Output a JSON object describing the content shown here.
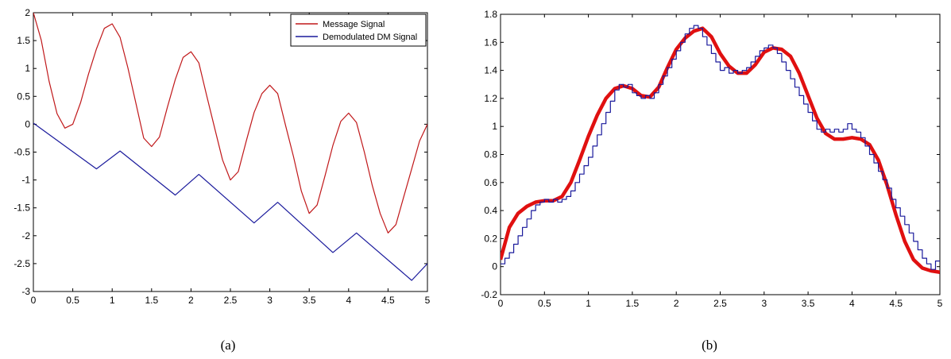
{
  "chart_data": [
    {
      "type": "line",
      "caption": "(a)",
      "xlim": [
        0,
        5
      ],
      "ylim": [
        -3,
        2
      ],
      "xticks": [
        0,
        0.5,
        1,
        1.5,
        2,
        2.5,
        3,
        3.5,
        4,
        4.5,
        5
      ],
      "xtick_labels": [
        "0",
        "0.5",
        "1",
        "1.5",
        "2",
        "2.5",
        "3",
        "3.5",
        "4",
        "4.5",
        "5"
      ],
      "yticks": [
        -3,
        -2.5,
        -2,
        -1.5,
        -1,
        -0.5,
        0,
        0.5,
        1,
        1.5,
        2
      ],
      "ytick_labels": [
        "-3",
        "-2.5",
        "-2",
        "-1.5",
        "-1",
        "-0.5",
        "0",
        "0.5",
        "1",
        "1.5",
        "2"
      ],
      "legend_position": "top-right",
      "series": [
        {
          "name": "Message Signal",
          "color": "#c0181a",
          "style": "thin",
          "x": [
            0,
            0.1,
            0.2,
            0.3,
            0.4,
            0.5,
            0.6,
            0.7,
            0.8,
            0.9,
            1.0,
            1.1,
            1.2,
            1.3,
            1.4,
            1.5,
            1.6,
            1.7,
            1.8,
            1.9,
            2.0,
            2.1,
            2.2,
            2.3,
            2.4,
            2.5,
            2.6,
            2.7,
            2.8,
            2.9,
            3.0,
            3.1,
            3.2,
            3.3,
            3.4,
            3.5,
            3.6,
            3.7,
            3.8,
            3.9,
            4.0,
            4.1,
            4.2,
            4.3,
            4.4,
            4.5,
            4.6,
            4.7,
            4.8,
            4.9,
            5.0
          ],
          "y": [
            2.0,
            1.51,
            0.77,
            0.19,
            -0.07,
            0.0,
            0.39,
            0.9,
            1.35,
            1.72,
            1.8,
            1.56,
            1.01,
            0.38,
            -0.25,
            -0.4,
            -0.23,
            0.3,
            0.8,
            1.2,
            1.3,
            1.1,
            0.51,
            -0.07,
            -0.64,
            -1.0,
            -0.85,
            -0.31,
            0.21,
            0.55,
            0.7,
            0.55,
            -0.02,
            -0.58,
            -1.2,
            -1.6,
            -1.45,
            -0.93,
            -0.38,
            0.05,
            0.2,
            0.03,
            -0.5,
            -1.1,
            -1.6,
            -1.95,
            -1.8,
            -1.3,
            -0.8,
            -0.3,
            0.0
          ]
        },
        {
          "name": "Demodulated DM Signal",
          "color": "#1a1a9c",
          "style": "thin",
          "x": [
            0,
            0.8,
            1.1,
            1.8,
            2.1,
            2.8,
            3.1,
            3.8,
            4.1,
            4.8,
            5.0
          ],
          "y": [
            0.02,
            -0.8,
            -0.48,
            -1.27,
            -0.9,
            -1.77,
            -1.4,
            -2.3,
            -1.95,
            -2.8,
            -2.5
          ]
        }
      ]
    },
    {
      "type": "line",
      "caption": "(b)",
      "xlim": [
        0,
        5
      ],
      "ylim": [
        -0.2,
        1.8
      ],
      "xticks": [
        0,
        0.5,
        1,
        1.5,
        2,
        2.5,
        3,
        3.5,
        4,
        4.5,
        5
      ],
      "xtick_labels": [
        "0",
        "0.5",
        "1",
        "1.5",
        "2",
        "2.5",
        "3",
        "3.5",
        "4",
        "4.5",
        "5"
      ],
      "yticks": [
        -0.2,
        0,
        0.2,
        0.4,
        0.6,
        0.8,
        1,
        1.2,
        1.4,
        1.6,
        1.8
      ],
      "ytick_labels": [
        "-0.2",
        "0",
        "0.2",
        "0.4",
        "0.6",
        "0.8",
        "1",
        "1.2",
        "1.4",
        "1.6",
        "1.8"
      ],
      "series": [
        {
          "color": "#e01010",
          "style": "thick",
          "x": [
            0,
            0.1,
            0.2,
            0.3,
            0.4,
            0.5,
            0.6,
            0.7,
            0.8,
            0.9,
            1.0,
            1.1,
            1.2,
            1.3,
            1.4,
            1.5,
            1.6,
            1.7,
            1.8,
            1.9,
            2.0,
            2.1,
            2.2,
            2.3,
            2.4,
            2.5,
            2.6,
            2.7,
            2.8,
            2.9,
            3.0,
            3.1,
            3.2,
            3.3,
            3.4,
            3.5,
            3.6,
            3.7,
            3.8,
            3.9,
            4.0,
            4.1,
            4.2,
            4.3,
            4.4,
            4.5,
            4.6,
            4.7,
            4.8,
            4.9,
            5.0
          ],
          "y": [
            0.05,
            0.28,
            0.38,
            0.43,
            0.46,
            0.47,
            0.47,
            0.5,
            0.6,
            0.76,
            0.93,
            1.08,
            1.2,
            1.27,
            1.29,
            1.27,
            1.22,
            1.21,
            1.28,
            1.42,
            1.55,
            1.63,
            1.68,
            1.7,
            1.64,
            1.52,
            1.43,
            1.38,
            1.38,
            1.44,
            1.53,
            1.56,
            1.55,
            1.5,
            1.38,
            1.22,
            1.06,
            0.95,
            0.91,
            0.91,
            0.92,
            0.91,
            0.87,
            0.76,
            0.58,
            0.37,
            0.18,
            0.05,
            -0.01,
            -0.03,
            -0.04
          ]
        },
        {
          "color": "#1a1a9c",
          "style": "staircase",
          "x": [
            0,
            0.05,
            0.1,
            0.15,
            0.2,
            0.25,
            0.3,
            0.35,
            0.4,
            0.45,
            0.5,
            0.55,
            0.6,
            0.65,
            0.7,
            0.75,
            0.8,
            0.85,
            0.9,
            0.95,
            1.0,
            1.05,
            1.1,
            1.15,
            1.2,
            1.25,
            1.3,
            1.35,
            1.4,
            1.45,
            1.5,
            1.55,
            1.6,
            1.65,
            1.7,
            1.75,
            1.8,
            1.85,
            1.9,
            1.95,
            2.0,
            2.05,
            2.1,
            2.15,
            2.2,
            2.25,
            2.3,
            2.35,
            2.4,
            2.45,
            2.5,
            2.55,
            2.6,
            2.65,
            2.7,
            2.75,
            2.8,
            2.85,
            2.9,
            2.95,
            3.0,
            3.05,
            3.1,
            3.15,
            3.2,
            3.25,
            3.3,
            3.35,
            3.4,
            3.45,
            3.5,
            3.55,
            3.6,
            3.65,
            3.7,
            3.75,
            3.8,
            3.85,
            3.9,
            3.95,
            4.0,
            4.05,
            4.1,
            4.15,
            4.2,
            4.25,
            4.3,
            4.35,
            4.4,
            4.45,
            4.5,
            4.55,
            4.6,
            4.65,
            4.7,
            4.75,
            4.8,
            4.85,
            4.9,
            4.95
          ],
          "y": [
            0.02,
            0.06,
            0.1,
            0.16,
            0.22,
            0.28,
            0.34,
            0.4,
            0.44,
            0.46,
            0.48,
            0.46,
            0.48,
            0.46,
            0.48,
            0.5,
            0.54,
            0.6,
            0.66,
            0.72,
            0.78,
            0.86,
            0.94,
            1.02,
            1.1,
            1.18,
            1.26,
            1.3,
            1.28,
            1.3,
            1.24,
            1.22,
            1.2,
            1.22,
            1.2,
            1.24,
            1.3,
            1.36,
            1.42,
            1.48,
            1.54,
            1.6,
            1.66,
            1.7,
            1.72,
            1.7,
            1.64,
            1.58,
            1.52,
            1.46,
            1.4,
            1.42,
            1.38,
            1.4,
            1.38,
            1.4,
            1.42,
            1.46,
            1.5,
            1.54,
            1.56,
            1.58,
            1.56,
            1.52,
            1.46,
            1.4,
            1.34,
            1.28,
            1.22,
            1.16,
            1.1,
            1.04,
            0.98,
            0.96,
            0.98,
            0.96,
            0.98,
            0.96,
            0.98,
            1.02,
            0.98,
            0.96,
            0.92,
            0.86,
            0.8,
            0.74,
            0.68,
            0.62,
            0.56,
            0.48,
            0.42,
            0.36,
            0.3,
            0.24,
            0.18,
            0.12,
            0.06,
            0.02,
            -0.02,
            0.04
          ]
        }
      ]
    }
  ]
}
